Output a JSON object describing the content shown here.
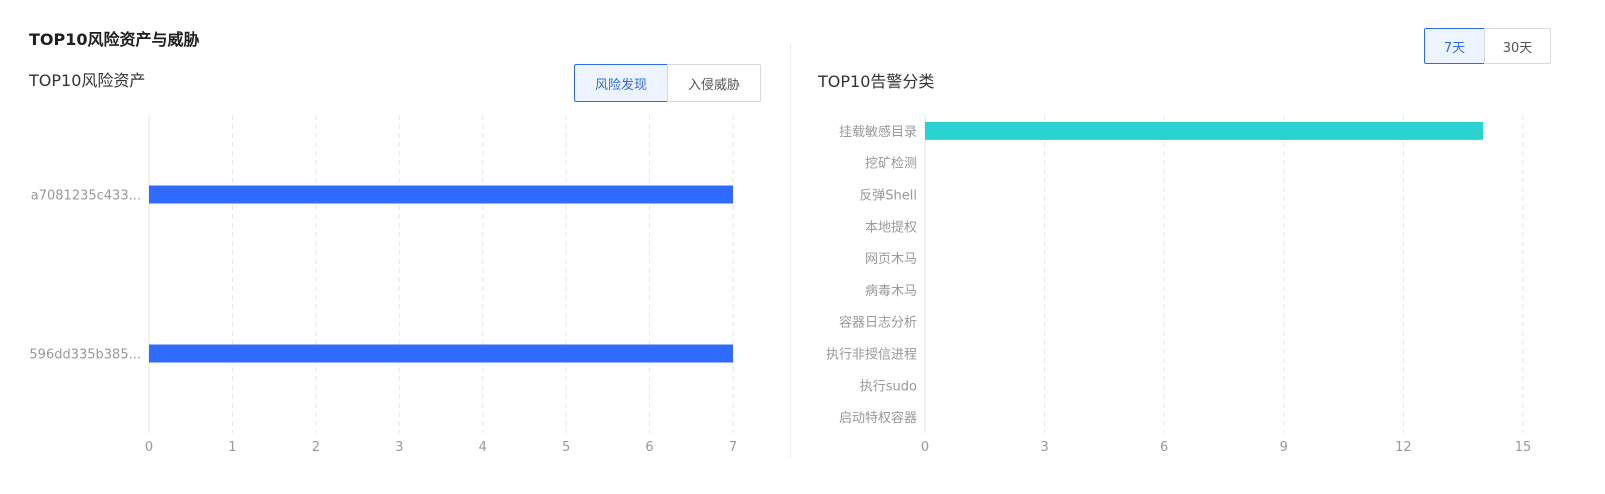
{
  "header": {
    "title": "TOP10风险资产与威胁",
    "range_options": [
      "7天",
      "30天"
    ],
    "range_active": "7天"
  },
  "left_panel": {
    "title": "TOP10风险资产",
    "tabs": [
      "风险发现",
      "入侵威胁"
    ],
    "active_tab": "风险发现"
  },
  "right_panel": {
    "title": "TOP10告警分类"
  },
  "colors": {
    "asset_bar": "#2f6bff",
    "alert_bar": "#2ad2d2",
    "accent": "#2e6bf0",
    "grid": "#e6e6e6",
    "axis_text": "#999999"
  },
  "chart_data": [
    {
      "type": "bar",
      "orientation": "horizontal",
      "title": "TOP10风险资产",
      "categories": [
        "a7081235c433...",
        "596dd335b385..."
      ],
      "values": [
        7,
        7
      ],
      "xlim": [
        0,
        7
      ],
      "xticks": [
        0,
        1,
        2,
        3,
        4,
        5,
        6,
        7
      ],
      "grid": true
    },
    {
      "type": "bar",
      "orientation": "horizontal",
      "title": "TOP10告警分类",
      "categories": [
        "挂载敏感目录",
        "挖矿检测",
        "反弹Shell",
        "本地提权",
        "网页木马",
        "病毒木马",
        "容器日志分析",
        "执行非授信进程",
        "执行sudo",
        "启动特权容器"
      ],
      "values": [
        14,
        0,
        0,
        0,
        0,
        0,
        0,
        0,
        0,
        0
      ],
      "xlim": [
        0,
        15
      ],
      "xticks": [
        0,
        3,
        6,
        9,
        12,
        15
      ],
      "grid": true
    }
  ]
}
